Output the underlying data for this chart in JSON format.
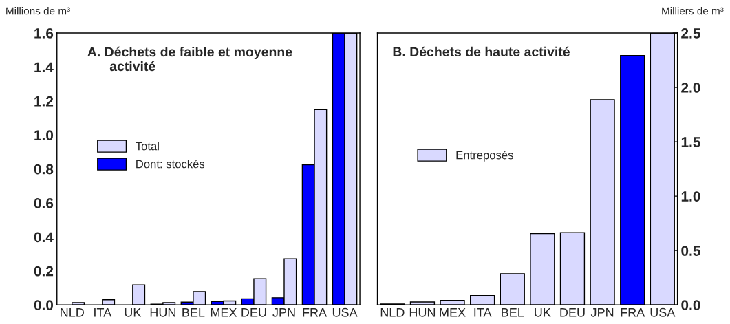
{
  "chart_data": [
    {
      "type": "bar",
      "title": "A. Déchets de faible et moyenne\n      activité",
      "ylabel": "Millions de m³",
      "categories": [
        "NLD",
        "ITA",
        "UK",
        "HUN",
        "BEL",
        "MEX",
        "DEU",
        "JPN",
        "FRA",
        "USA"
      ],
      "series": [
        {
          "name": "Dont: stockés",
          "color": "#0000ff",
          "values": [
            null,
            null,
            null,
            0.004,
            0.016,
            0.02,
            0.036,
            0.042,
            0.825,
            1.6
          ]
        },
        {
          "name": "Total",
          "color": "#d9d9ff",
          "values": [
            0.013,
            0.03,
            0.117,
            0.013,
            0.078,
            0.023,
            0.154,
            0.271,
            1.149,
            1.6
          ]
        }
      ],
      "ylim": [
        0,
        1.6
      ],
      "yticks": [
        {
          "value": 0,
          "label": "0.0"
        },
        0.2,
        0.4,
        0.6,
        0.8,
        {
          "value": 1,
          "label": "1.0"
        },
        1.2,
        1.4,
        1.6
      ],
      "legend": "center",
      "grid": false
    },
    {
      "type": "bar",
      "title": "B. Déchets de haute activité",
      "y2label": "Milliers de m³",
      "categories": [
        "NLD",
        "HUN",
        "MEX",
        "ITA",
        "BEL",
        "UK",
        "DEU",
        "JPN",
        "FRA",
        "USA"
      ],
      "series": [
        {
          "name": "Entreposés",
          "color": "#d9d9ff",
          "axis": "y2",
          "colors": [
            "#d9d9ff",
            "#d9d9ff",
            "#d9d9ff",
            "#d9d9ff",
            "#d9d9ff",
            "#d9d9ff",
            "#d9d9ff",
            "#d9d9ff",
            "#0000ff",
            "#d9d9ff"
          ],
          "values": [
            0.008,
            0.027,
            0.042,
            0.085,
            0.286,
            0.656,
            0.664,
            1.887,
            2.293,
            2.5
          ]
        }
      ],
      "y2lim": [
        0,
        2.5
      ],
      "y2ticks": [
        {
          "value": 0,
          "label": "0.0"
        },
        0.5,
        {
          "value": 1,
          "label": "1.0"
        },
        1.5,
        {
          "value": 2,
          "label": "2.0"
        },
        2.5
      ],
      "legend": "center",
      "grid": false
    }
  ]
}
